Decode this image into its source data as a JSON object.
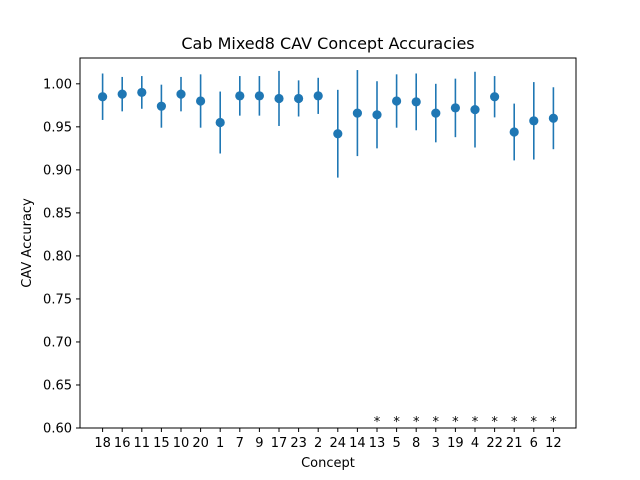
{
  "chart_data": {
    "type": "scatter",
    "title": "Cab Mixed8 CAV Concept Accuracies",
    "xlabel": "Concept",
    "ylabel": "CAV Accuracy",
    "ylim": [
      0.6,
      1.03
    ],
    "yticks": [
      "0.60",
      "0.65",
      "0.70",
      "0.75",
      "0.80",
      "0.85",
      "0.90",
      "0.95",
      "1.00"
    ],
    "grid": false,
    "color": "#1f77b4",
    "categories": [
      "18",
      "16",
      "11",
      "15",
      "10",
      "20",
      "1",
      "7",
      "9",
      "17",
      "23",
      "2",
      "24",
      "14",
      "13",
      "5",
      "8",
      "3",
      "19",
      "4",
      "22",
      "21",
      "6",
      "12"
    ],
    "values": [
      0.985,
      0.988,
      0.99,
      0.974,
      0.988,
      0.98,
      0.955,
      0.986,
      0.986,
      0.983,
      0.983,
      0.986,
      0.942,
      0.966,
      0.964,
      0.98,
      0.979,
      0.966,
      0.972,
      0.97,
      0.985,
      0.944,
      0.957,
      0.96
    ],
    "error": [
      0.027,
      0.02,
      0.019,
      0.025,
      0.02,
      0.031,
      0.036,
      0.023,
      0.023,
      0.032,
      0.021,
      0.021,
      0.051,
      0.05,
      0.039,
      0.031,
      0.033,
      0.034,
      0.034,
      0.044,
      0.024,
      0.033,
      0.045,
      0.036
    ],
    "markers": [
      "",
      "",
      "",
      "",
      "",
      "",
      "",
      "",
      "",
      "",
      "",
      "",
      "",
      "",
      "*",
      "*",
      "*",
      "*",
      "*",
      "*",
      "*",
      "*",
      "*",
      "*"
    ]
  }
}
